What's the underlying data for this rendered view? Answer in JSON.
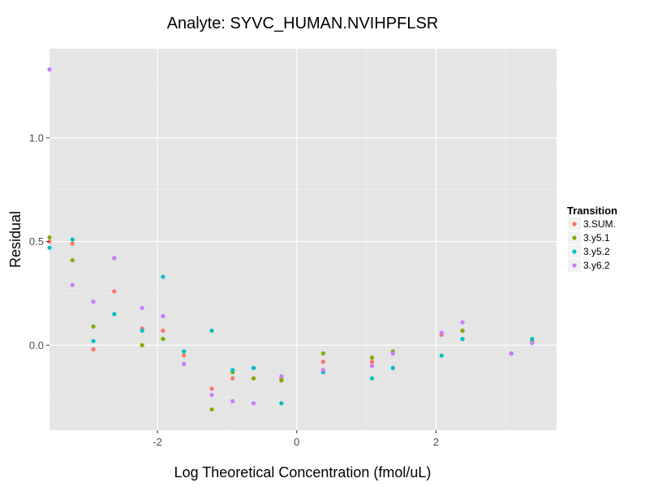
{
  "chart_data": {
    "type": "scatter",
    "title": "Analyte: SYVC_HUMAN.NVIHPFLSR",
    "xlabel": "Log Theoretical Concentration (fmol/uL)",
    "ylabel": "Residual",
    "xlim": [
      -3.55,
      3.73
    ],
    "ylim": [
      -0.41,
      1.43
    ],
    "x_ticks": [
      -2,
      0,
      2
    ],
    "x_tick_labels": [
      "-2",
      "0",
      "2"
    ],
    "y_ticks": [
      0.0,
      0.5,
      1.0
    ],
    "y_tick_labels": [
      "0.0",
      "0.5",
      "1.0"
    ],
    "grid": true,
    "background": "#e5e5e5",
    "legend": {
      "title": "Transition",
      "position": "right"
    },
    "series": [
      {
        "name": "3.SUM.",
        "color": "#f8766d",
        "points": [
          {
            "x": -3.55,
            "y": 0.5
          },
          {
            "x": -3.22,
            "y": 0.49
          },
          {
            "x": -2.92,
            "y": -0.02
          },
          {
            "x": -2.62,
            "y": 0.26
          },
          {
            "x": -2.22,
            "y": 0.08
          },
          {
            "x": -1.92,
            "y": 0.07
          },
          {
            "x": -1.62,
            "y": -0.05
          },
          {
            "x": -1.22,
            "y": -0.21
          },
          {
            "x": -0.92,
            "y": -0.16
          },
          {
            "x": -0.62,
            "y": -0.16
          },
          {
            "x": -0.22,
            "y": -0.16
          },
          {
            "x": 0.38,
            "y": -0.08
          },
          {
            "x": 1.08,
            "y": -0.08
          },
          {
            "x": 1.38,
            "y": -0.04
          },
          {
            "x": 2.08,
            "y": 0.05
          },
          {
            "x": 2.38,
            "y": 0.07
          },
          {
            "x": 3.08,
            "y": -0.04
          },
          {
            "x": 3.38,
            "y": 0.02
          }
        ]
      },
      {
        "name": "3.y5.1",
        "color": "#7cae00",
        "points": [
          {
            "x": -3.55,
            "y": 0.52
          },
          {
            "x": -3.22,
            "y": 0.41
          },
          {
            "x": -2.92,
            "y": 0.09
          },
          {
            "x": -2.62,
            "y": 0.42
          },
          {
            "x": -2.22,
            "y": 0.0
          },
          {
            "x": -1.92,
            "y": 0.03
          },
          {
            "x": -1.62,
            "y": -0.03
          },
          {
            "x": -1.22,
            "y": -0.31
          },
          {
            "x": -0.92,
            "y": -0.13
          },
          {
            "x": -0.62,
            "y": -0.16
          },
          {
            "x": -0.22,
            "y": -0.17
          },
          {
            "x": 0.38,
            "y": -0.04
          },
          {
            "x": 1.08,
            "y": -0.06
          },
          {
            "x": 1.38,
            "y": -0.03
          },
          {
            "x": 2.08,
            "y": 0.06
          },
          {
            "x": 2.38,
            "y": 0.07
          },
          {
            "x": 3.08,
            "y": -0.04
          },
          {
            "x": 3.38,
            "y": 0.02
          }
        ]
      },
      {
        "name": "3.y5.2",
        "color": "#00bfc4",
        "points": [
          {
            "x": -3.55,
            "y": 0.47
          },
          {
            "x": -3.22,
            "y": 0.51
          },
          {
            "x": -2.92,
            "y": 0.02
          },
          {
            "x": -2.62,
            "y": 0.15
          },
          {
            "x": -2.22,
            "y": 0.07
          },
          {
            "x": -1.92,
            "y": 0.33
          },
          {
            "x": -1.62,
            "y": -0.03
          },
          {
            "x": -1.22,
            "y": 0.07
          },
          {
            "x": -0.92,
            "y": -0.12
          },
          {
            "x": -0.62,
            "y": -0.11
          },
          {
            "x": -0.22,
            "y": -0.28
          },
          {
            "x": 0.38,
            "y": -0.13
          },
          {
            "x": 1.08,
            "y": -0.16
          },
          {
            "x": 1.38,
            "y": -0.11
          },
          {
            "x": 2.08,
            "y": -0.05
          },
          {
            "x": 2.38,
            "y": 0.03
          },
          {
            "x": 3.08,
            "y": -0.04
          },
          {
            "x": 3.38,
            "y": 0.03
          }
        ]
      },
      {
        "name": "3.y6.2",
        "color": "#c77cff",
        "points": [
          {
            "x": -3.55,
            "y": 1.33
          },
          {
            "x": -3.22,
            "y": 0.29
          },
          {
            "x": -2.92,
            "y": 0.21
          },
          {
            "x": -2.62,
            "y": 0.42
          },
          {
            "x": -2.22,
            "y": 0.18
          },
          {
            "x": -1.92,
            "y": 0.14
          },
          {
            "x": -1.62,
            "y": -0.09
          },
          {
            "x": -1.22,
            "y": -0.24
          },
          {
            "x": -0.92,
            "y": -0.27
          },
          {
            "x": -0.62,
            "y": -0.28
          },
          {
            "x": -0.22,
            "y": -0.15
          },
          {
            "x": 0.38,
            "y": -0.12
          },
          {
            "x": 1.08,
            "y": -0.1
          },
          {
            "x": 1.38,
            "y": -0.04
          },
          {
            "x": 2.08,
            "y": 0.06
          },
          {
            "x": 2.38,
            "y": 0.11
          },
          {
            "x": 3.08,
            "y": -0.04
          },
          {
            "x": 3.38,
            "y": 0.01
          }
        ]
      }
    ]
  }
}
